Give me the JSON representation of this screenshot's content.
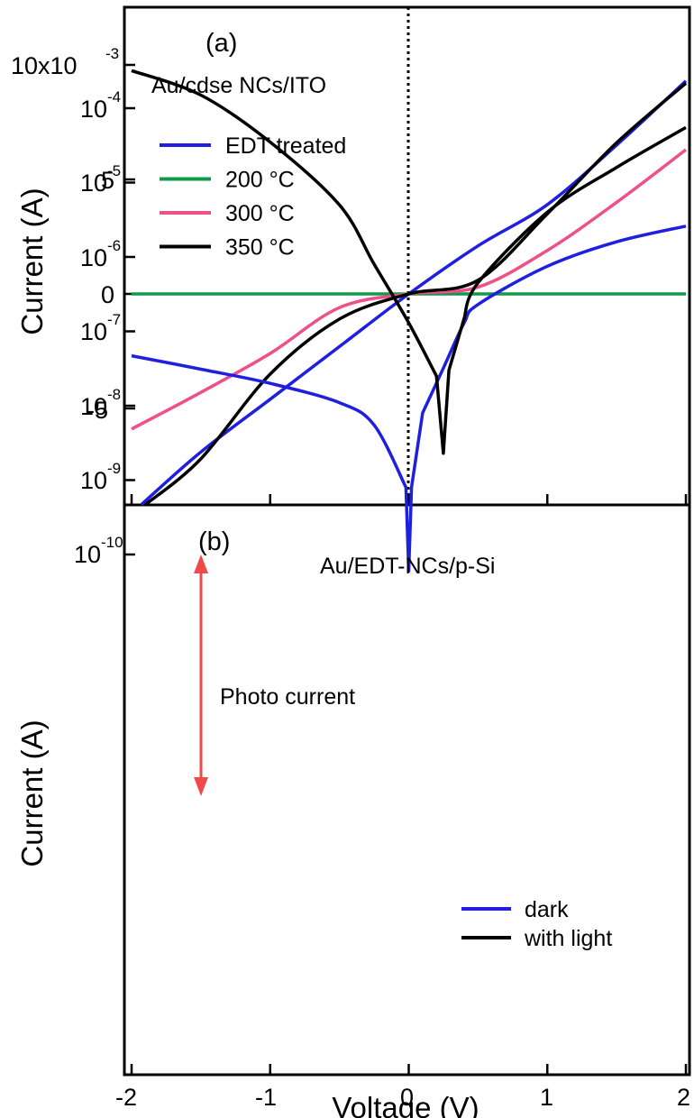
{
  "figure": {
    "xlabel": "Voltage (V)",
    "x_tick_labels": [
      "-2",
      "-1",
      "0",
      "1",
      "2"
    ]
  },
  "panel_a": {
    "label": "(a)",
    "device": "Au/cdse NCs/ITO",
    "ylabel": "Current (A)",
    "ytick_top": "10x10",
    "ytick_top_exp": "-3",
    "y_tick_labels": [
      "5",
      "0",
      "-5"
    ]
  },
  "panel_b": {
    "label": "(b)",
    "device": "Au/EDT-NCs/p-Si",
    "ylabel": "Current (A)",
    "ytick_base": "10",
    "ytick_exps": [
      "-4",
      "-5",
      "-6",
      "-7",
      "-8",
      "-9",
      "-10"
    ],
    "annotation": "Photo current"
  },
  "colors": {
    "edt": "#1f1fe0",
    "c200": "#119a4a",
    "c300": "#f0508a",
    "c350": "#000000",
    "dark": "#1f1fe0",
    "light": "#000000",
    "arrow": "#ef4a4a"
  },
  "chart_data": [
    {
      "type": "line",
      "x": [
        -1.9,
        -1.5,
        -1.0,
        -0.5,
        0.0,
        0.5,
        1.0,
        1.5,
        2.0
      ],
      "xlim": [
        -2.05,
        2.05
      ],
      "ylim": [
        -9.2,
        12.5
      ],
      "y_scale": "linear (x10^-3 A)",
      "grid": false,
      "legend": "upper-left",
      "series": [
        {
          "name": "EDT treated",
          "values": [
            -9.2,
            -6.9,
            -4.6,
            -2.3,
            0.0,
            2.1,
            3.9,
            6.5,
            9.3
          ]
        },
        {
          "name": "200 °C",
          "values": [
            0.0,
            0.0,
            0.0,
            0.0,
            0.0,
            0.0,
            0.0,
            0.0,
            0.0
          ]
        },
        {
          "name": "300 °C",
          "values": [
            -5.9,
            -4.3,
            -2.6,
            -0.6,
            0.0,
            0.3,
            1.9,
            4.0,
            6.3
          ]
        },
        {
          "name": "350 °C",
          "values": [
            -9.2,
            -7.2,
            -3.5,
            -1.1,
            0.0,
            0.6,
            3.5,
            6.6,
            9.2
          ]
        }
      ]
    },
    {
      "type": "line",
      "x": [
        -2.0,
        -1.5,
        -1.0,
        -0.5,
        -0.25,
        0.0,
        0.1,
        0.25,
        0.4,
        0.5,
        1.0,
        1.5,
        2.0
      ],
      "xlim": [
        -2.05,
        2.05
      ],
      "ylim": [
        1e-11,
        0.001
      ],
      "y_scale": "log",
      "grid": false,
      "legend": "lower-right",
      "series": [
        {
          "name": "dark",
          "values": [
            4.7e-08,
            3.1e-08,
            2e-08,
            1.1e-08,
            5.5e-09,
            6e-11,
            8e-09,
            3.2e-08,
            1.3e-07,
            2.3e-07,
            7.5e-07,
            1.6e-06,
            2.6e-06
          ]
        },
        {
          "name": "with light",
          "values": [
            0.00032,
            0.00015,
            3.5e-05,
            5e-06,
            8e-07,
            1.3e-07,
            1.2e-08,
            2.3e-09,
            1.5e-07,
            4.5e-07,
            4e-06,
            1.6e-05,
            5.5e-05
          ]
        }
      ]
    }
  ]
}
